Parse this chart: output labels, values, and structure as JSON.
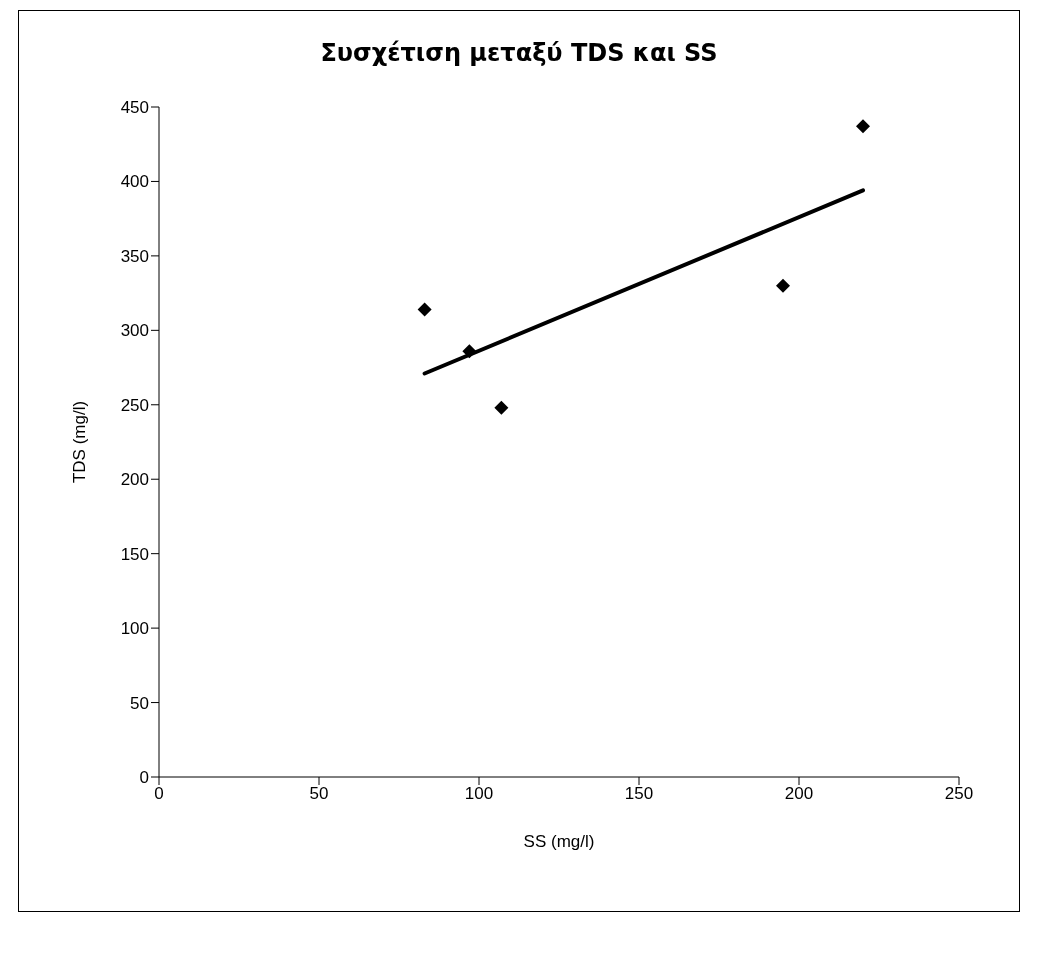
{
  "chart_data": {
    "type": "scatter",
    "title": "Συσχέτιση μεταξύ TDS και SS",
    "xlabel": "SS (mg/l)",
    "ylabel": "TDS (mg/l)",
    "x": [
      83,
      97,
      107,
      195,
      220
    ],
    "series": [
      {
        "type": "scatter",
        "color": "#000000",
        "marker": "diamond",
        "values": [
          314,
          286,
          248,
          330,
          437
        ]
      },
      {
        "type": "line",
        "color": "#000000",
        "marker": "none",
        "line_style": "solid",
        "x": [
          83,
          220
        ],
        "values": [
          271,
          394
        ]
      }
    ],
    "xlim": [
      0,
      250
    ],
    "xticks": [
      0,
      50,
      100,
      150,
      200,
      250
    ],
    "ylim": [
      0,
      450
    ],
    "yticks": [
      0,
      50,
      100,
      150,
      200,
      250,
      300,
      350,
      400,
      450
    ],
    "grid": false,
    "legend": false
  }
}
